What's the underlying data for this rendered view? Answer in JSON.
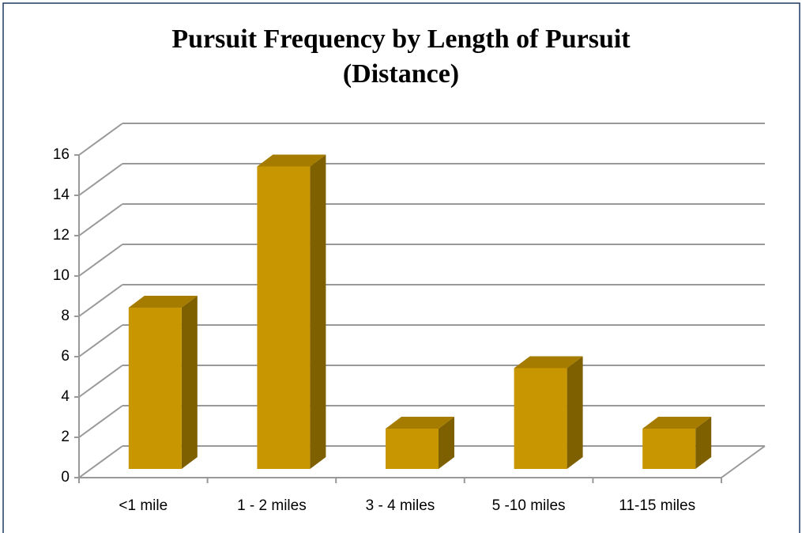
{
  "chart_data": {
    "type": "bar3d",
    "title": "Pursuit Frequency by Length of Pursuit (Distance)",
    "categories": [
      "<1 mile",
      "1 - 2 miles",
      "3 - 4 miles",
      "5 -10 miles",
      "11-15 miles"
    ],
    "values": [
      8,
      15,
      2,
      5,
      2
    ],
    "color": "#c89600",
    "ylim": [
      0,
      16
    ],
    "yticks": [
      0,
      2,
      4,
      6,
      8,
      10,
      12,
      14,
      16
    ],
    "grid": true
  }
}
